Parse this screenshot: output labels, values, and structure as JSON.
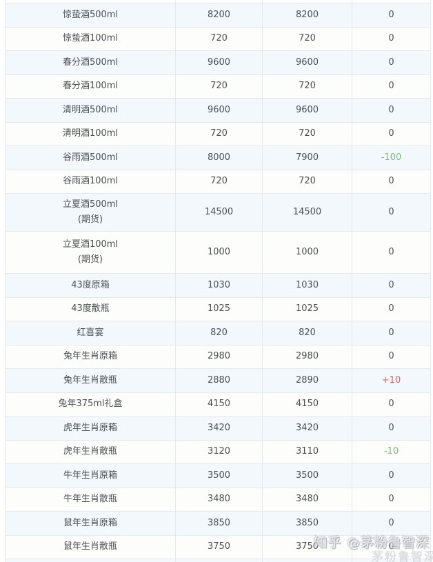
{
  "table": {
    "rows": [
      {
        "name": "惊蛰酒500ml",
        "sub": "",
        "prev": "8200",
        "today": "8200",
        "change": "0",
        "trend": "flat"
      },
      {
        "name": "惊蛰酒100ml",
        "sub": "",
        "prev": "720",
        "today": "720",
        "change": "0",
        "trend": "flat"
      },
      {
        "name": "春分酒500ml",
        "sub": "",
        "prev": "9600",
        "today": "9600",
        "change": "0",
        "trend": "flat"
      },
      {
        "name": "春分酒100ml",
        "sub": "",
        "prev": "720",
        "today": "720",
        "change": "0",
        "trend": "flat"
      },
      {
        "name": "清明酒500ml",
        "sub": "",
        "prev": "9600",
        "today": "9600",
        "change": "0",
        "trend": "flat"
      },
      {
        "name": "清明酒100ml",
        "sub": "",
        "prev": "720",
        "today": "720",
        "change": "0",
        "trend": "flat"
      },
      {
        "name": "谷雨酒500ml",
        "sub": "",
        "prev": "8000",
        "today": "7900",
        "change": "-100",
        "trend": "down"
      },
      {
        "name": "谷雨酒100ml",
        "sub": "",
        "prev": "720",
        "today": "720",
        "change": "0",
        "trend": "flat"
      },
      {
        "name": "立夏酒500ml",
        "sub": "(期货)",
        "prev": "14500",
        "today": "14500",
        "change": "0",
        "trend": "flat"
      },
      {
        "name": "立夏酒100ml",
        "sub": "(期货)",
        "prev": "1000",
        "today": "1000",
        "change": "0",
        "trend": "flat"
      },
      {
        "name": "43度原箱",
        "sub": "",
        "prev": "1030",
        "today": "1030",
        "change": "0",
        "trend": "flat"
      },
      {
        "name": "43度散瓶",
        "sub": "",
        "prev": "1025",
        "today": "1025",
        "change": "0",
        "trend": "flat"
      },
      {
        "name": "红喜宴",
        "sub": "",
        "prev": "820",
        "today": "820",
        "change": "0",
        "trend": "flat"
      },
      {
        "name": "兔年生肖原箱",
        "sub": "",
        "prev": "2980",
        "today": "2980",
        "change": "0",
        "trend": "flat"
      },
      {
        "name": "兔年生肖散瓶",
        "sub": "",
        "prev": "2880",
        "today": "2890",
        "change": "+10",
        "trend": "up"
      },
      {
        "name": "兔年375ml礼盒",
        "sub": "",
        "prev": "4150",
        "today": "4150",
        "change": "0",
        "trend": "flat"
      },
      {
        "name": "虎年生肖原箱",
        "sub": "",
        "prev": "3420",
        "today": "3420",
        "change": "0",
        "trend": "flat"
      },
      {
        "name": "虎年生肖散瓶",
        "sub": "",
        "prev": "3120",
        "today": "3110",
        "change": "-10",
        "trend": "down"
      },
      {
        "name": "牛年生肖原箱",
        "sub": "",
        "prev": "3500",
        "today": "3500",
        "change": "0",
        "trend": "flat"
      },
      {
        "name": "牛年生肖散瓶",
        "sub": "",
        "prev": "3480",
        "today": "3480",
        "change": "0",
        "trend": "flat"
      },
      {
        "name": "鼠年生肖原箱",
        "sub": "",
        "prev": "3850",
        "today": "3850",
        "change": "0",
        "trend": "flat"
      },
      {
        "name": "鼠年生肖散瓶",
        "sub": "",
        "prev": "3750",
        "today": "3750",
        "change": "0",
        "trend": "flat"
      }
    ]
  },
  "watermark": {
    "main": "知乎 @茅粉鲁智深",
    "echo": "茅粉鲁智深"
  },
  "colors": {
    "row_alt_bg": "#f3f8fd",
    "row_base_bg": "#fdfdfc",
    "border": "#e6e9ec",
    "text": "#4c5054",
    "change_up_red": "#e25f5f",
    "change_down_green": "#7cba7c"
  }
}
